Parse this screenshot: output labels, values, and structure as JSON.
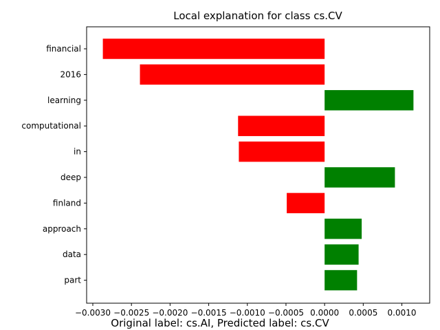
{
  "chart_data": {
    "type": "bar",
    "orientation": "horizontal",
    "title": "Local explanation for class cs.CV",
    "categories": [
      "financial",
      "2016",
      "learning",
      "computational",
      "in",
      "deep",
      "finland",
      "approach",
      "data",
      "part"
    ],
    "values": [
      -0.00287,
      -0.00239,
      0.00115,
      -0.00112,
      -0.00111,
      0.00091,
      -0.00049,
      0.00048,
      0.00044,
      0.00042
    ],
    "xlim": [
      -0.00308,
      0.00136
    ],
    "xticks": [
      -0.003,
      -0.0025,
      -0.002,
      -0.0015,
      -0.001,
      -0.0005,
      0.0,
      0.0005,
      0.001
    ],
    "xtick_labels": [
      "−0.0030",
      "−0.0025",
      "−0.0020",
      "−0.0015",
      "−0.0010",
      "−0.0005",
      "0.0000",
      "0.0005",
      "0.0010"
    ],
    "colors": {
      "positive": "#008000",
      "negative": "#ff0000"
    },
    "grid": false,
    "caption": "Original label: cs.AI, Predicted label: cs.CV"
  }
}
